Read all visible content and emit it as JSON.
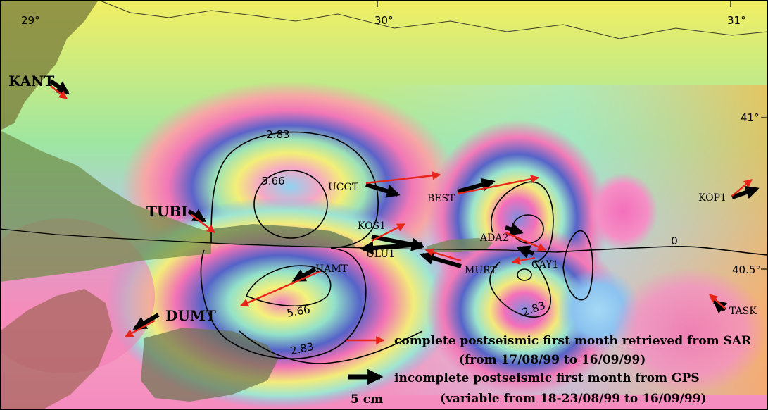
{
  "map": {
    "longitude_labels": [
      "29°",
      "30°",
      "31°"
    ],
    "latitude_labels": [
      "41°",
      "40.5°"
    ],
    "contour_labels": [
      "2.83",
      "5.66",
      "5.66",
      "2.83",
      "2.83",
      "0"
    ],
    "stations": [
      {
        "id": "kant",
        "label": "KANT"
      },
      {
        "id": "tubi",
        "label": "TUBI"
      },
      {
        "id": "dumt",
        "label": "DUMT"
      },
      {
        "id": "ucgt",
        "label": "UCGT"
      },
      {
        "id": "best",
        "label": "BEST"
      },
      {
        "id": "kos1",
        "label": "KOS1"
      },
      {
        "id": "ulu1",
        "label": "ULU1"
      },
      {
        "id": "hamt",
        "label": "HAMT"
      },
      {
        "id": "ada2",
        "label": "ADA2"
      },
      {
        "id": "cay1",
        "label": "CAY1"
      },
      {
        "id": "murt",
        "label": "MURT"
      },
      {
        "id": "kop1",
        "label": "KOP1"
      },
      {
        "id": "task",
        "label": "TASK"
      }
    ],
    "colors": {
      "sar_arrow": "#e8251a",
      "gps_arrow": "#000000",
      "contour": "#000000"
    }
  },
  "legend": {
    "sar_line1": "complete postseismic  first month retrieved from SAR",
    "sar_line2": "(from 17/08/99 to 16/09/99)",
    "gps_line1": "incomplete postseismic first month from GPS",
    "gps_line2": "(variable from 18-23/08/99 to  16/09/99)",
    "scale_label": "5 cm"
  }
}
